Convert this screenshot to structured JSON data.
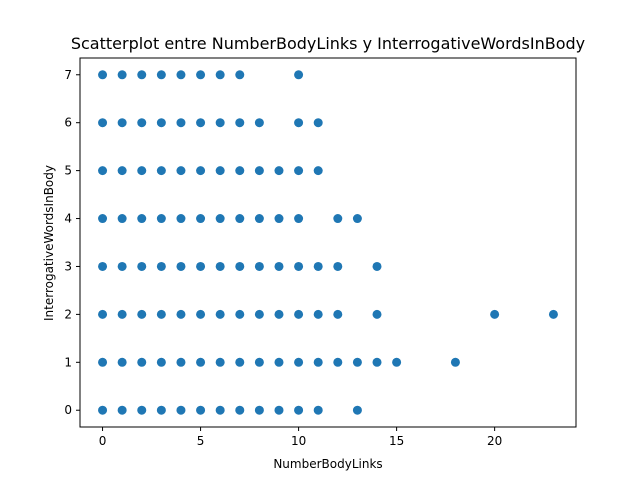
{
  "chart_data": {
    "type": "scatter",
    "title": "Scatterplot entre NumberBodyLinks y InterrogativeWordsInBody",
    "xlabel": "NumberBodyLinks",
    "ylabel": "InterrogativeWordsInBody",
    "xlim": [
      -1.15,
      24.15
    ],
    "ylim": [
      -0.35,
      7.35
    ],
    "xticks": [
      0,
      5,
      10,
      15,
      20
    ],
    "yticks": [
      0,
      1,
      2,
      3,
      4,
      5,
      6,
      7
    ],
    "grid": false,
    "marker_color": "#1f77b4",
    "points_by_y": [
      {
        "y": 7,
        "x": [
          0,
          1,
          2,
          3,
          4,
          5,
          6,
          7,
          10
        ]
      },
      {
        "y": 6,
        "x": [
          0,
          1,
          2,
          3,
          4,
          5,
          6,
          7,
          8,
          10,
          11
        ]
      },
      {
        "y": 5,
        "x": [
          0,
          1,
          2,
          3,
          4,
          5,
          6,
          7,
          8,
          9,
          10,
          11
        ]
      },
      {
        "y": 4,
        "x": [
          0,
          1,
          2,
          3,
          4,
          5,
          6,
          7,
          8,
          9,
          10,
          12,
          13
        ]
      },
      {
        "y": 3,
        "x": [
          0,
          1,
          2,
          3,
          4,
          5,
          6,
          7,
          8,
          9,
          10,
          11,
          12,
          14
        ]
      },
      {
        "y": 2,
        "x": [
          0,
          1,
          2,
          3,
          4,
          5,
          6,
          7,
          8,
          9,
          10,
          11,
          12,
          14,
          20,
          23
        ]
      },
      {
        "y": 1,
        "x": [
          0,
          1,
          2,
          3,
          4,
          5,
          6,
          7,
          8,
          9,
          10,
          11,
          12,
          13,
          14,
          15,
          18
        ]
      },
      {
        "y": 0,
        "x": [
          0,
          1,
          2,
          3,
          4,
          5,
          6,
          7,
          8,
          9,
          10,
          11,
          13
        ]
      }
    ]
  }
}
